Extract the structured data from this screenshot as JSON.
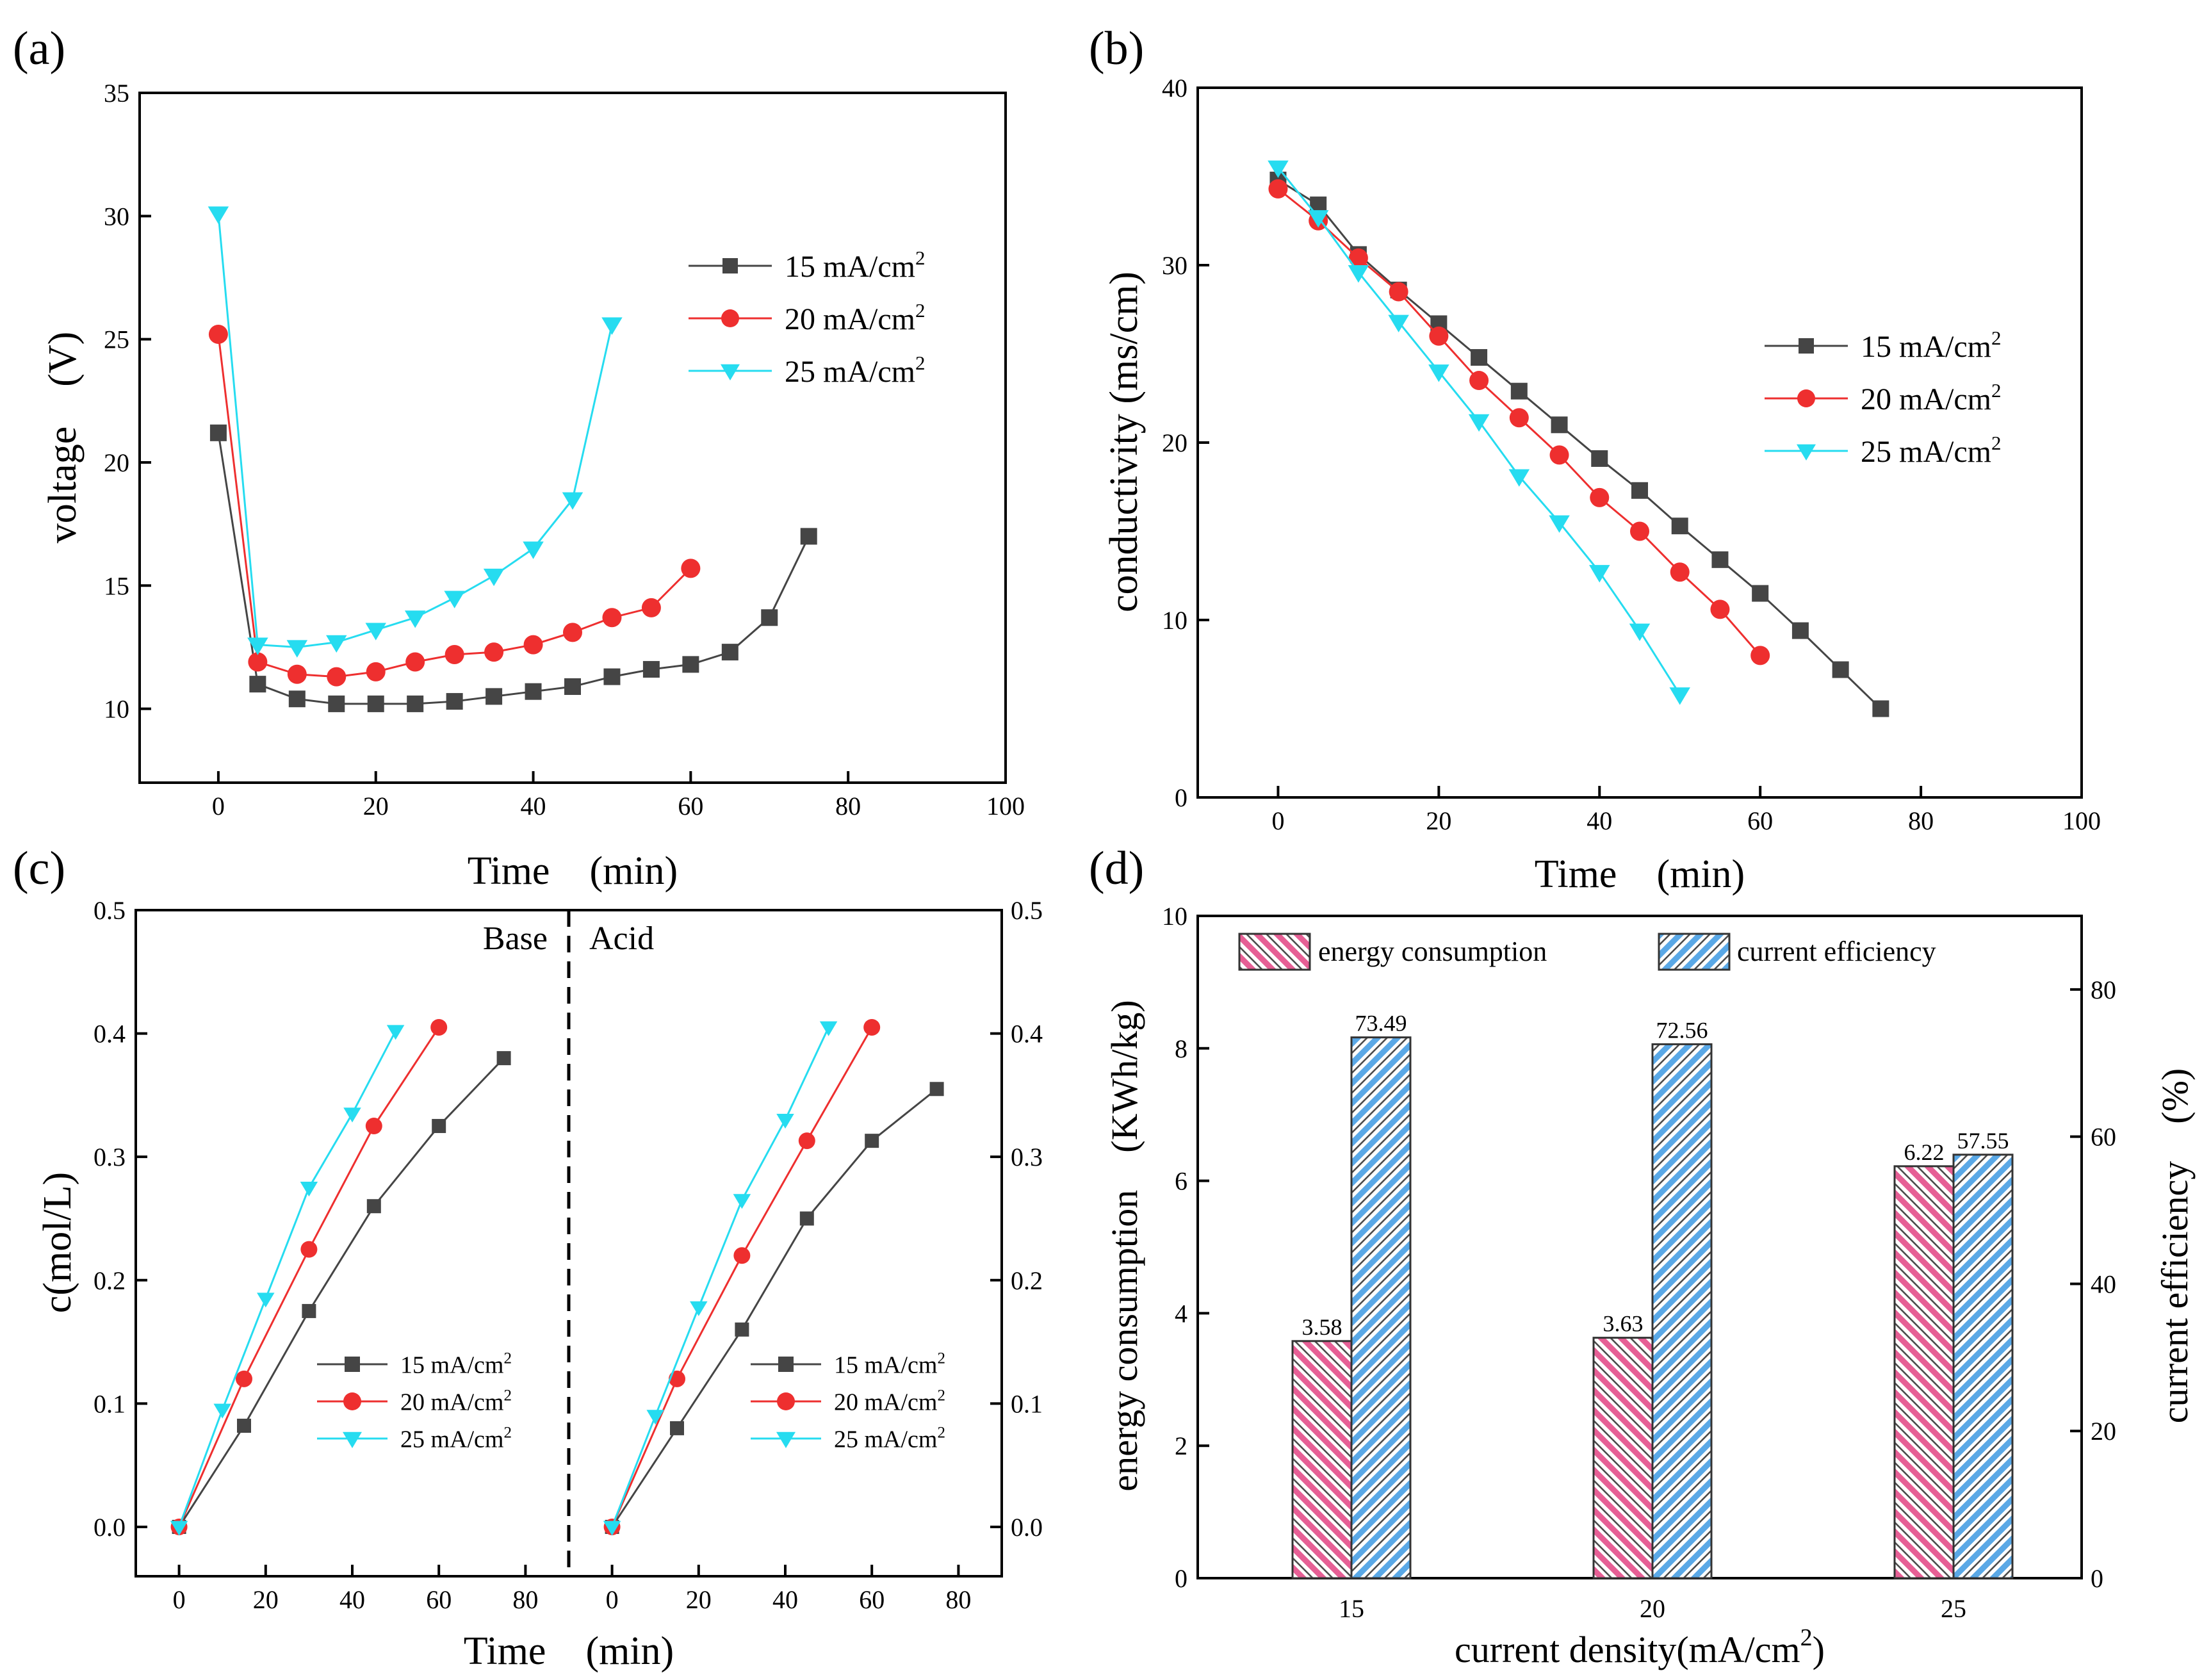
{
  "figure": {
    "panels": {
      "a": {
        "label": "(a)",
        "xlabel": "Time　(min)",
        "ylabel": "voltage　(V)"
      },
      "b": {
        "label": "(b)",
        "xlabel": "Time　(min)",
        "ylabel": "conductivity (ms/cm)"
      },
      "c": {
        "label": "(c)",
        "xlabel": "Time　(min)",
        "ylabel": "c(mol/L)",
        "left_title": "Base",
        "right_title": "Acid"
      },
      "d": {
        "label": "(d)",
        "xlabel": "current density(mA/cm²)",
        "ylabel_left": "energy consumption　(KWh/kg)",
        "ylabel_right": "current efficiency　(%)"
      }
    }
  },
  "colors": {
    "s15": "#454545",
    "s20": "#ee2f2f",
    "s25": "#26dcf0",
    "ec": "#e65f95",
    "ce": "#5aa8e6"
  },
  "chart_data": [
    {
      "id": "a",
      "type": "line",
      "title": "(a)",
      "xlabel": "Time　(min)",
      "ylabel": "voltage　(V)",
      "xlim": [
        -10,
        100
      ],
      "ylim": [
        7,
        35
      ],
      "xticks": [
        0,
        20,
        40,
        60,
        80,
        100
      ],
      "yticks": [
        10,
        15,
        20,
        25,
        30,
        35
      ],
      "legend": "top-right",
      "series": [
        {
          "name": "15 mA/cm²",
          "marker": "square",
          "color": "#454545",
          "x": [
            0,
            5,
            10,
            15,
            20,
            25,
            30,
            35,
            40,
            45,
            50,
            55,
            60,
            65,
            70,
            75
          ],
          "y": [
            21.2,
            11.0,
            10.4,
            10.2,
            10.2,
            10.2,
            10.3,
            10.5,
            10.7,
            10.9,
            11.3,
            11.6,
            11.8,
            12.3,
            13.7,
            17.0
          ]
        },
        {
          "name": "20 mA/cm²",
          "marker": "circle",
          "color": "#ee2f2f",
          "x": [
            0,
            5,
            10,
            15,
            20,
            25,
            30,
            35,
            40,
            45,
            50,
            55,
            60
          ],
          "y": [
            25.2,
            11.9,
            11.4,
            11.3,
            11.5,
            11.9,
            12.2,
            12.3,
            12.6,
            13.1,
            13.7,
            14.1,
            15.7
          ]
        },
        {
          "name": "25 mA/cm²",
          "marker": "triangle-down",
          "color": "#26dcf0",
          "x": [
            0,
            5,
            10,
            15,
            20,
            25,
            30,
            35,
            40,
            45,
            50
          ],
          "y": [
            30.1,
            12.6,
            12.5,
            12.7,
            13.2,
            13.7,
            14.5,
            15.4,
            16.5,
            18.5,
            25.6
          ]
        }
      ]
    },
    {
      "id": "b",
      "type": "line",
      "title": "(b)",
      "xlabel": "Time　(min)",
      "ylabel": "conductivity (ms/cm)",
      "xlim": [
        -10,
        100
      ],
      "ylim": [
        0,
        40
      ],
      "xticks": [
        0,
        20,
        40,
        60,
        80,
        100
      ],
      "yticks": [
        0,
        10,
        20,
        30,
        40
      ],
      "legend": "right",
      "series": [
        {
          "name": "15 mA/cm²",
          "marker": "square",
          "color": "#454545",
          "x": [
            0,
            5,
            10,
            15,
            20,
            25,
            30,
            35,
            40,
            45,
            50,
            55,
            60,
            65,
            70,
            75
          ],
          "y": [
            34.8,
            33.4,
            30.6,
            28.6,
            26.7,
            24.8,
            22.9,
            21.0,
            19.1,
            17.3,
            15.3,
            13.4,
            11.5,
            9.4,
            7.2,
            5.0
          ]
        },
        {
          "name": "20 mA/cm²",
          "marker": "circle",
          "color": "#ee2f2f",
          "x": [
            0,
            5,
            10,
            15,
            20,
            25,
            30,
            35,
            40,
            45,
            50,
            55,
            60
          ],
          "y": [
            34.3,
            32.5,
            30.4,
            28.5,
            26.0,
            23.5,
            21.4,
            19.3,
            16.9,
            15.0,
            12.7,
            10.6,
            8.0
          ]
        },
        {
          "name": "25 mA/cm²",
          "marker": "triangle-down",
          "color": "#26dcf0",
          "x": [
            0,
            5,
            10,
            15,
            20,
            25,
            30,
            35,
            40,
            45,
            50
          ],
          "y": [
            35.5,
            32.7,
            29.6,
            26.8,
            24.0,
            21.2,
            18.1,
            15.5,
            12.7,
            9.4,
            5.8
          ]
        }
      ]
    },
    {
      "id": "c-base",
      "type": "line",
      "title": "Base",
      "xlabel": "Time　(min)",
      "ylabel": "c(mol/L)",
      "xlim": [
        -10,
        90
      ],
      "ylim": [
        -0.04,
        0.5
      ],
      "xticks": [
        0,
        20,
        40,
        60,
        80
      ],
      "yticks": [
        0.0,
        0.1,
        0.2,
        0.3,
        0.4,
        0.5
      ],
      "legend": "bottom-right",
      "series": [
        {
          "name": "15 mA/cm²",
          "marker": "square",
          "color": "#454545",
          "x": [
            0,
            15,
            30,
            45,
            60,
            75
          ],
          "y": [
            0.0,
            0.082,
            0.175,
            0.26,
            0.325,
            0.38
          ]
        },
        {
          "name": "20 mA/cm²",
          "marker": "circle",
          "color": "#ee2f2f",
          "x": [
            0,
            15,
            30,
            45,
            60
          ],
          "y": [
            0.0,
            0.12,
            0.225,
            0.325,
            0.405
          ]
        },
        {
          "name": "25 mA/cm²",
          "marker": "triangle-down",
          "color": "#26dcf0",
          "x": [
            0,
            10,
            20,
            30,
            40,
            50
          ],
          "y": [
            0.0,
            0.095,
            0.185,
            0.275,
            0.335,
            0.402
          ]
        }
      ]
    },
    {
      "id": "c-acid",
      "type": "line",
      "title": "Acid",
      "xlabel": "Time　(min)",
      "ylabel": "c(mol/L)",
      "xlim": [
        -10,
        90
      ],
      "ylim": [
        -0.04,
        0.5
      ],
      "xticks": [
        0,
        20,
        40,
        60,
        80
      ],
      "yticks": [
        0.0,
        0.1,
        0.2,
        0.3,
        0.4,
        0.5
      ],
      "legend": "bottom-right",
      "series": [
        {
          "name": "15 mA/cm²",
          "marker": "square",
          "color": "#454545",
          "x": [
            0,
            15,
            30,
            45,
            60,
            75
          ],
          "y": [
            0.0,
            0.08,
            0.16,
            0.25,
            0.313,
            0.355
          ]
        },
        {
          "name": "20 mA/cm²",
          "marker": "circle",
          "color": "#ee2f2f",
          "x": [
            0,
            15,
            30,
            45,
            60
          ],
          "y": [
            0.0,
            0.12,
            0.22,
            0.313,
            0.405
          ]
        },
        {
          "name": "25 mA/cm²",
          "marker": "triangle-down",
          "color": "#26dcf0",
          "x": [
            0,
            10,
            20,
            30,
            40,
            50
          ],
          "y": [
            0.0,
            0.09,
            0.178,
            0.265,
            0.33,
            0.405
          ]
        }
      ]
    },
    {
      "id": "d",
      "type": "bar",
      "title": "(d)",
      "xlabel": "current density(mA/cm²)",
      "ylabel": "energy consumption　(KWh/kg)",
      "ylabel_right": "current efficiency　(%)",
      "categories": [
        "15",
        "20",
        "25"
      ],
      "ylim": [
        0,
        10
      ],
      "yticks": [
        0,
        2,
        4,
        6,
        8,
        10
      ],
      "ylim_right": [
        0,
        90
      ],
      "yticks_right": [
        0,
        20,
        40,
        60,
        80
      ],
      "legend": "top",
      "series": [
        {
          "name": "energy consumption",
          "axis": "left",
          "color": "#e65f95",
          "values": [
            3.58,
            3.63,
            6.22
          ],
          "labels": [
            "3.58",
            "3.63",
            "6.22"
          ]
        },
        {
          "name": "current efficiency",
          "axis": "right",
          "color": "#5aa8e6",
          "values": [
            73.49,
            72.56,
            57.55
          ],
          "labels": [
            "73.49",
            "72.56",
            "57.55"
          ]
        }
      ]
    }
  ]
}
